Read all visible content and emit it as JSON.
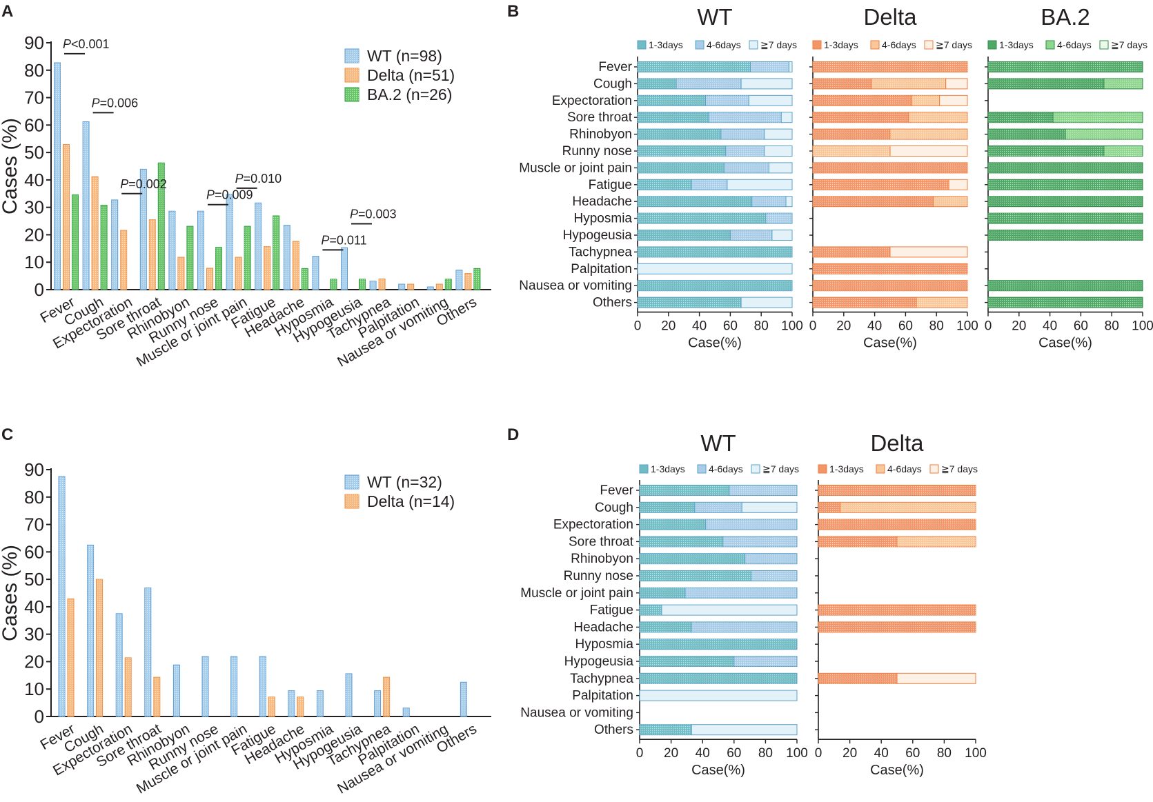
{
  "colors": {
    "wt": "#a6cdea",
    "wt_edge": "#5b9bd5",
    "delta": "#f7b97e",
    "delta_edge": "#ee8a3c",
    "ba2": "#66c466",
    "ba2_edge": "#2e9e3e",
    "h_wt_13": "#6fbcc4",
    "h_wt_46": "#a9cde8",
    "h_wt_7": "#e3f1f8",
    "h_wt_edge": "#5aa1c6",
    "h_delta_13": "#f2966a",
    "h_delta_46": "#f9c89a",
    "h_delta_7": "#fdf0e4",
    "h_delta_edge": "#ee7e3c",
    "h_ba2_13": "#4fa866",
    "h_ba2_46": "#8fd68f",
    "h_ba2_7": "#eef9ee",
    "h_ba2_edge": "#2e8b45"
  },
  "chart_data": [
    {
      "panel": "A",
      "type": "bar",
      "ylabel": "Cases (%)",
      "ylim": [
        0,
        90
      ],
      "yticks": [
        "0",
        "10",
        "20",
        "30",
        "40",
        "50",
        "60",
        "70",
        "80",
        "90"
      ],
      "categories": [
        "Fever",
        "Cough",
        "Expectoration",
        "Sore throat",
        "Rhinobyon",
        "Runny nose",
        "Muscle or joint pain",
        "Fatigue",
        "Headache",
        "Hyposmia",
        "Hypogeusia",
        "Tachypnea",
        "Palpitation",
        "Nausea or vomiting",
        "Others"
      ],
      "series": [
        {
          "name": "WT (n=98)",
          "key": "wt",
          "values": [
            82.7,
            61.2,
            32.7,
            43.9,
            28.6,
            28.6,
            34.7,
            31.6,
            23.5,
            12.2,
            15.3,
            3.1,
            2.0,
            1.0,
            7.1
          ]
        },
        {
          "name": "Delta (n=51)",
          "key": "delta",
          "values": [
            52.9,
            41.2,
            21.6,
            25.5,
            11.8,
            7.8,
            11.8,
            15.7,
            17.6,
            0,
            0,
            3.9,
            2.0,
            2.0,
            5.9
          ]
        },
        {
          "name": "BA.2 (n=26)",
          "key": "ba2",
          "values": [
            34.6,
            30.8,
            0,
            46.2,
            23.1,
            15.4,
            23.1,
            26.9,
            7.7,
            3.8,
            3.8,
            0,
            0,
            3.8,
            7.7
          ]
        }
      ],
      "annotations": [
        {
          "p": "P",
          "rest": "<0.001",
          "cat": 0,
          "y": 86
        },
        {
          "p": "P",
          "rest": "=0.006",
          "cat": 1,
          "y": 64.5
        },
        {
          "p": "P",
          "rest": "=0.002",
          "cat": 2,
          "y": 35
        },
        {
          "p": "P",
          "rest": "=0.009",
          "cat": 5,
          "y": 31
        },
        {
          "p": "P",
          "rest": "=0.010",
          "cat": 6,
          "y": 37
        },
        {
          "p": "P",
          "rest": "=0.011",
          "cat": 9,
          "y": 14.5
        },
        {
          "p": "P",
          "rest": "=0.003",
          "cat": 10,
          "y": 24
        }
      ]
    },
    {
      "panel": "C",
      "type": "bar",
      "ylabel": "Cases (%)",
      "ylim": [
        0,
        90
      ],
      "yticks": [
        "0",
        "10",
        "20",
        "30",
        "40",
        "50",
        "60",
        "70",
        "80",
        "90"
      ],
      "categories": [
        "Fever",
        "Cough",
        "Expectoration",
        "Sore throat",
        "Rhinobyon",
        "Runny nose",
        "Muscle or joint pain",
        "Fatigue",
        "Headache",
        "Hyposmia",
        "Hypogeusia",
        "Tachypnea",
        "Palpitation",
        "Nausea or vomiting",
        "Others"
      ],
      "series": [
        {
          "name": "WT (n=32)",
          "key": "wt",
          "values": [
            87.5,
            62.5,
            37.5,
            46.9,
            18.8,
            21.9,
            21.9,
            21.9,
            9.4,
            9.4,
            15.6,
            9.4,
            3.1,
            0,
            12.5
          ]
        },
        {
          "name": "Delta (n=14)",
          "key": "delta",
          "values": [
            42.9,
            50.0,
            21.4,
            14.3,
            0,
            0,
            0,
            7.1,
            7.1,
            0,
            0,
            14.3,
            0,
            0,
            0
          ]
        }
      ]
    },
    {
      "panel": "B",
      "type": "stacked-bar-horizontal",
      "rows": [
        "Fever",
        "Cough",
        "Expectoration",
        "Sore  throat",
        "Rhinobyon",
        "Runny nose",
        "Muscle or joint pain",
        "Fatigue",
        "Headache",
        "Hyposmia",
        "Hypogeusia",
        "Tachypnea",
        "Palpitation",
        "Nausea or vomiting",
        "Others"
      ],
      "xlabel": "Case(%)",
      "xticks": [
        "0",
        "20",
        "40",
        "60",
        "80",
        "100"
      ],
      "legend": [
        "1-3days",
        "4-6days",
        "≧7 days"
      ],
      "groups": [
        {
          "title": "WT",
          "key": "wt",
          "data": [
            [
              73,
              25,
              2
            ],
            [
              25,
              42,
              33
            ],
            [
              44,
              28,
              28
            ],
            [
              46,
              47,
              7
            ],
            [
              54,
              28,
              18
            ],
            [
              57,
              25,
              18
            ],
            [
              56,
              29,
              15
            ],
            [
              35,
              23,
              42
            ],
            [
              74,
              22,
              4
            ],
            [
              83,
              17,
              0
            ],
            [
              60,
              27,
              13
            ],
            [
              100,
              0,
              0
            ],
            [
              0,
              0,
              100
            ],
            [
              100,
              0,
              0
            ],
            [
              67,
              0,
              33
            ]
          ]
        },
        {
          "title": "Delta",
          "key": "delta",
          "data": [
            [
              100,
              0,
              0
            ],
            [
              38,
              48,
              14
            ],
            [
              64,
              18,
              18
            ],
            [
              62,
              38,
              0
            ],
            [
              50,
              50,
              0
            ],
            [
              0,
              50,
              50
            ],
            [
              100,
              0,
              0
            ],
            [
              88,
              0,
              12
            ],
            [
              78,
              22,
              0
            ],
            null,
            null,
            [
              50,
              0,
              50
            ],
            [
              100,
              0,
              0
            ],
            [
              100,
              0,
              0
            ],
            [
              67,
              33,
              0
            ]
          ]
        },
        {
          "title": "BA.2",
          "key": "ba2",
          "data": [
            [
              100,
              0,
              0
            ],
            [
              75,
              25,
              0
            ],
            null,
            [
              42,
              58,
              0
            ],
            [
              50,
              50,
              0
            ],
            [
              75,
              25,
              0
            ],
            [
              100,
              0,
              0
            ],
            [
              100,
              0,
              0
            ],
            [
              100,
              0,
              0
            ],
            [
              100,
              0,
              0
            ],
            [
              100,
              0,
              0
            ],
            null,
            null,
            [
              100,
              0,
              0
            ],
            [
              100,
              0,
              0
            ]
          ]
        }
      ]
    },
    {
      "panel": "D",
      "type": "stacked-bar-horizontal",
      "rows": [
        "Fever",
        "Cough",
        "Expectoration",
        "Sore  throat",
        "Rhinobyon",
        "Runny nose",
        "Muscle or joint pain",
        "Fatigue",
        "Headache",
        "Hyposmia",
        "Hypogeusia",
        "Tachypnea",
        "Palpitation",
        "Nausea or vomiting",
        "Others"
      ],
      "xlabel": "Case(%)",
      "xticks": [
        "0",
        "20",
        "40",
        "60",
        "80",
        "100"
      ],
      "legend": [
        "1-3days",
        "4-6days",
        "≧7 days"
      ],
      "groups": [
        {
          "title": "WT",
          "key": "wt",
          "data": [
            [
              57,
              43,
              0
            ],
            [
              35,
              30,
              35
            ],
            [
              42,
              58,
              0
            ],
            [
              53,
              47,
              0
            ],
            [
              67,
              33,
              0
            ],
            [
              71,
              29,
              0
            ],
            [
              29,
              71,
              0
            ],
            [
              14,
              0,
              86
            ],
            [
              33,
              67,
              0
            ],
            [
              100,
              0,
              0
            ],
            [
              60,
              40,
              0
            ],
            [
              100,
              0,
              0
            ],
            [
              0,
              0,
              100
            ],
            null,
            [
              33,
              0,
              67
            ]
          ]
        },
        {
          "title": "Delta",
          "key": "delta",
          "data": [
            [
              100,
              0,
              0
            ],
            [
              14,
              86,
              0
            ],
            [
              100,
              0,
              0
            ],
            [
              50,
              50,
              0
            ],
            null,
            null,
            null,
            [
              100,
              0,
              0
            ],
            [
              100,
              0,
              0
            ],
            null,
            null,
            [
              50,
              0,
              50
            ],
            null,
            null,
            null
          ]
        }
      ]
    }
  ]
}
